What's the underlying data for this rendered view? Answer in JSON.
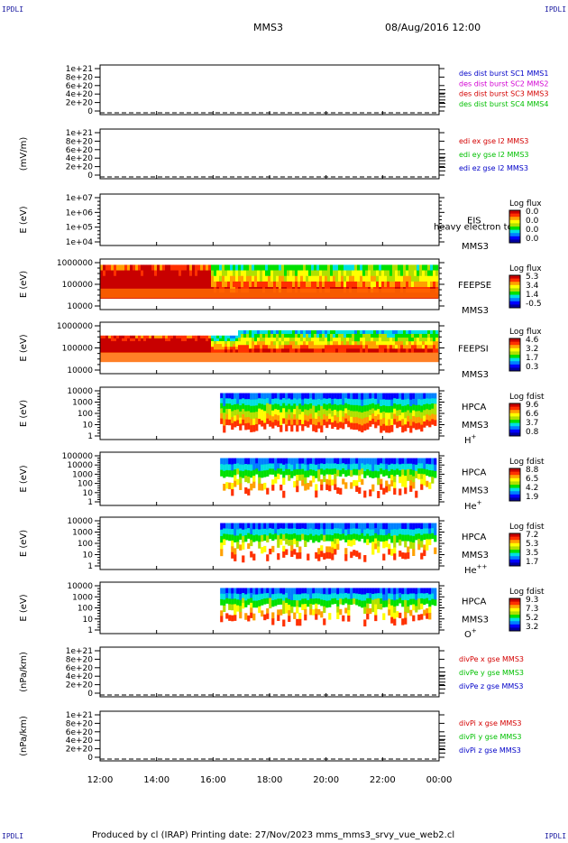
{
  "corner_label": "IPDLI",
  "header": {
    "spacecraft": "MMS3",
    "datetime": "08/Aug/2016 12:00"
  },
  "footer": {
    "text": "Produced by cl (IRAP)   Printing date: 27/Nov/2023   mms_mms3_srvy_vue_web2.cl"
  },
  "time_axis": {
    "ticks": [
      "12:00",
      "14:00",
      "16:00",
      "18:00",
      "20:00",
      "22:00",
      "00:00"
    ]
  },
  "colors": {
    "blue": "#0000c8",
    "magenta": "#d400d4",
    "red": "#d40000",
    "green": "#00c000",
    "colormap": [
      "#0000a0",
      "#0000ff",
      "#0080ff",
      "#00e0e0",
      "#00e000",
      "#b0e000",
      "#ffff00",
      "#ffa000",
      "#ff3000",
      "#c80000"
    ]
  },
  "chart_data": [
    {
      "type": "line",
      "ylabel": "",
      "yticks": [
        "1e+21",
        "8e+20",
        "6e+20",
        "4e+20",
        "2e+20",
        "0"
      ],
      "ylim": [
        0,
        1e+21
      ],
      "series": [
        {
          "name": "des dist burst SC1 MMS1",
          "color": "blue",
          "values": []
        },
        {
          "name": "des dist burst SC2 MMS2",
          "color": "magenta",
          "values": []
        },
        {
          "name": "des dist burst SC3 MMS3",
          "color": "red",
          "values": []
        },
        {
          "name": "des dist burst SC4 MMS4",
          "color": "green",
          "values": []
        }
      ],
      "zero_line": "dashed"
    },
    {
      "type": "line",
      "ylabel": "(mV/m)",
      "yticks": [
        "1e+21",
        "8e+20",
        "6e+20",
        "4e+20",
        "2e+20",
        "0"
      ],
      "ylim": [
        0,
        1e+21
      ],
      "series": [
        {
          "name": "edi ex gse l2 MMS3",
          "color": "red",
          "values": []
        },
        {
          "name": "edi ey gse l2 MMS3",
          "color": "green",
          "values": []
        },
        {
          "name": "edi ez gse l2 MMS3",
          "color": "blue",
          "values": []
        }
      ],
      "zero_line": "dashed"
    },
    {
      "type": "heatmap",
      "ylabel": "E (eV)",
      "yticks": [
        "1e+07",
        "1e+06",
        "1e+05",
        "1e+04"
      ],
      "instrument": "EIS",
      "subtitle": "heavy electron to",
      "spacecraft": "MMS3",
      "colorbar": {
        "title": "Log flux",
        "ticks": [
          "0.0",
          "0.0",
          "0.0",
          "0.0"
        ]
      },
      "data_start": null,
      "coverage": "empty"
    },
    {
      "type": "heatmap",
      "ylabel": "E (eV)",
      "yticks": [
        "1000000",
        "100000",
        "10000"
      ],
      "instrument": "FEEPSE",
      "spacecraft": "MMS3",
      "colorbar": {
        "title": "Log flux",
        "ticks": [
          "5.3",
          "3.4",
          "1.4",
          "-0.5"
        ]
      },
      "data_start": "12:00",
      "coverage": "full"
    },
    {
      "type": "heatmap",
      "ylabel": "E (eV)",
      "yticks": [
        "1000000",
        "100000",
        "10000"
      ],
      "instrument": "FEEPSI",
      "spacecraft": "MMS3",
      "colorbar": {
        "title": "Log flux",
        "ticks": [
          "4.6",
          "3.2",
          "1.7",
          "0.3"
        ]
      },
      "data_start": "12:00",
      "coverage": "full"
    },
    {
      "type": "heatmap",
      "ylabel": "E (eV)",
      "yticks": [
        "10000",
        "1000",
        "100",
        "10",
        "1"
      ],
      "instrument": "HPCA",
      "spacecraft": "MMS3",
      "species": "H",
      "charge": "+",
      "colorbar": {
        "title": "Log fdist",
        "ticks": [
          "9.6",
          "6.6",
          "3.7",
          "0.8"
        ]
      },
      "data_start": "16:15",
      "coverage": "partial"
    },
    {
      "type": "heatmap",
      "ylabel": "E (eV)",
      "yticks": [
        "100000",
        "10000",
        "1000",
        "100",
        "10",
        "1"
      ],
      "instrument": "HPCA",
      "spacecraft": "MMS3",
      "species": "He",
      "charge": "+",
      "colorbar": {
        "title": "Log fdist",
        "ticks": [
          "8.8",
          "6.5",
          "4.2",
          "1.9"
        ]
      },
      "data_start": "16:15",
      "coverage": "partial"
    },
    {
      "type": "heatmap",
      "ylabel": "E (eV)",
      "yticks": [
        "10000",
        "1000",
        "100",
        "10",
        "1"
      ],
      "instrument": "HPCA",
      "spacecraft": "MMS3",
      "species": "He",
      "charge": "++",
      "colorbar": {
        "title": "Log fdist",
        "ticks": [
          "7.2",
          "5.3",
          "3.5",
          "1.7"
        ]
      },
      "data_start": "16:15",
      "coverage": "partial"
    },
    {
      "type": "heatmap",
      "ylabel": "E (eV)",
      "yticks": [
        "10000",
        "1000",
        "100",
        "10",
        "1"
      ],
      "instrument": "HPCA",
      "spacecraft": "MMS3",
      "species": "O",
      "charge": "+",
      "colorbar": {
        "title": "Log fdist",
        "ticks": [
          "9.3",
          "7.3",
          "5.2",
          "3.2"
        ]
      },
      "data_start": "16:15",
      "coverage": "partial"
    },
    {
      "type": "line",
      "ylabel": "(nPa/km)",
      "yticks": [
        "1e+21",
        "8e+20",
        "6e+20",
        "4e+20",
        "2e+20",
        "0"
      ],
      "ylim": [
        0,
        1e+21
      ],
      "series": [
        {
          "name": "divPe x gse MMS3",
          "color": "red",
          "values": []
        },
        {
          "name": "divPe y gse MMS3",
          "color": "green",
          "values": []
        },
        {
          "name": "divPe z gse MMS3",
          "color": "blue",
          "values": []
        }
      ],
      "zero_line": "dashed"
    },
    {
      "type": "line",
      "ylabel": "(nPa/km)",
      "yticks": [
        "1e+21",
        "8e+20",
        "6e+20",
        "4e+20",
        "2e+20",
        "0"
      ],
      "ylim": [
        0,
        1e+21
      ],
      "series": [
        {
          "name": "divPi x gse MMS3",
          "color": "red",
          "values": []
        },
        {
          "name": "divPi y gse MMS3",
          "color": "green",
          "values": []
        },
        {
          "name": "divPi z gse MMS3",
          "color": "blue",
          "values": []
        }
      ],
      "zero_line": "dashed"
    }
  ]
}
